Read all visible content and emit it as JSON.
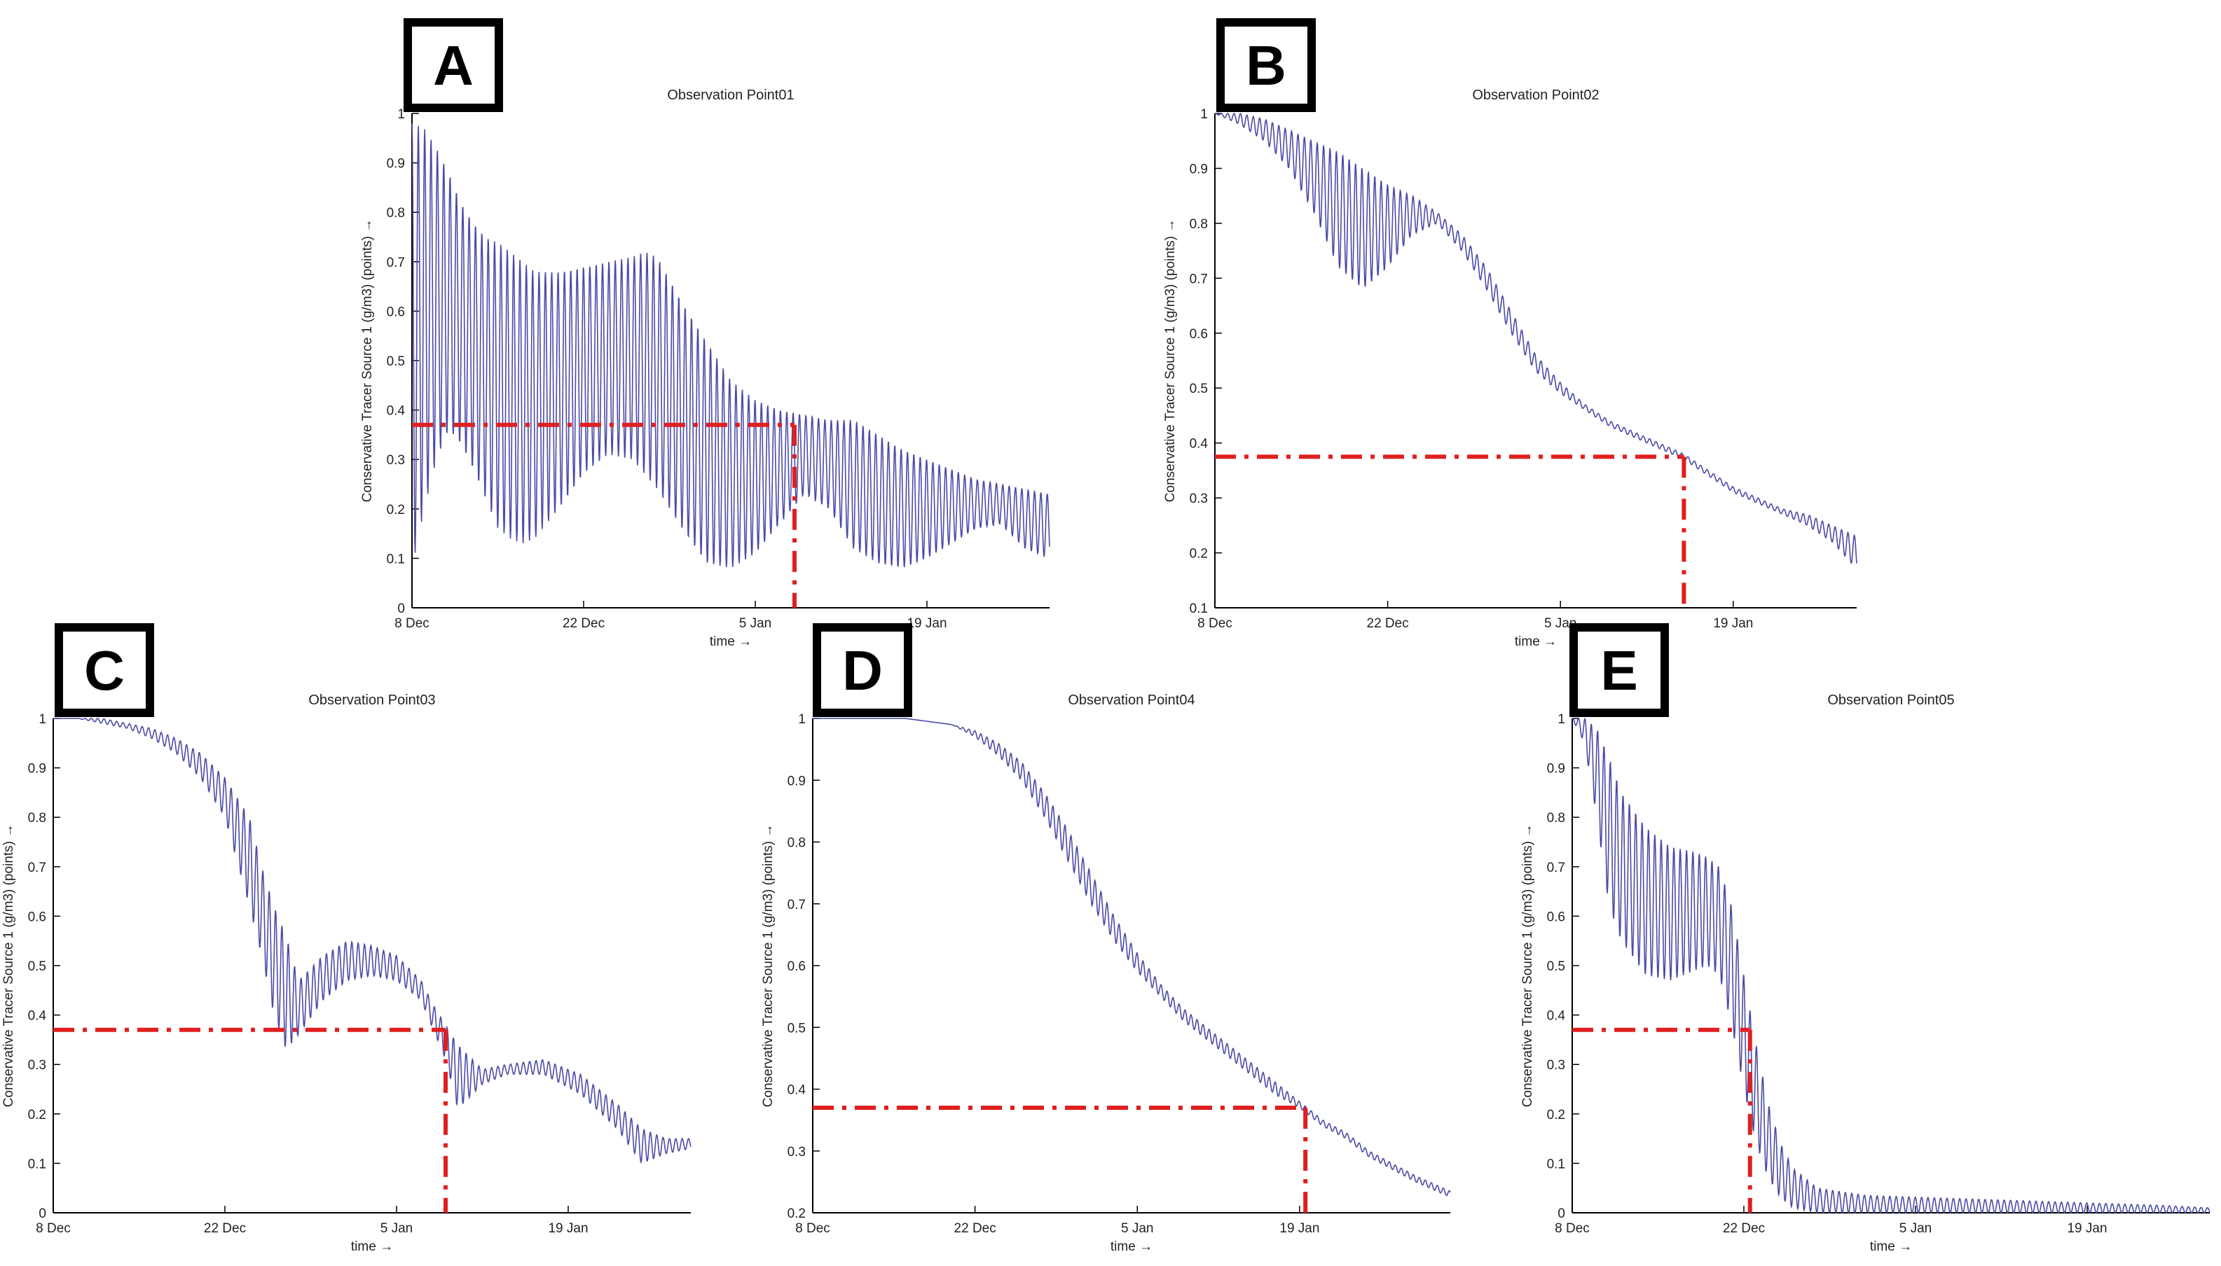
{
  "charts": [
    {
      "id": "A",
      "label": "A",
      "type": "line",
      "title": "Observation Point01",
      "xlabel": "time →",
      "ylabel": "Conservative Tracer Source 1 (g/m3) (points) →",
      "ylim": [
        0,
        1
      ],
      "yticks": [
        "0",
        "0.1",
        "0.2",
        "0.3",
        "0.4",
        "0.5",
        "0.6",
        "0.7",
        "0.8",
        "0.9",
        "1"
      ],
      "xticks": [
        {
          "label": "8 Dec",
          "day": 0
        },
        {
          "label": "22 Dec",
          "day": 14
        },
        {
          "label": "5 Jan",
          "day": 28
        },
        {
          "label": "19 Jan",
          "day": 42
        }
      ],
      "xdomain_days": [
        0,
        52
      ],
      "threshold": {
        "y": 0.37,
        "x_day": 31.2
      },
      "series_color": "#4a4aa8",
      "threshold_color": "#e01f1f",
      "chart_data": {
        "x_days": [
          0,
          1,
          2,
          3,
          4,
          5,
          6,
          7,
          8,
          9,
          10,
          12,
          14,
          16,
          18,
          19,
          20,
          22,
          24,
          26,
          28,
          30,
          32,
          34,
          36,
          38,
          40,
          42,
          44,
          46,
          48,
          50,
          52
        ],
        "upper_envelope": [
          0.98,
          0.97,
          0.93,
          0.88,
          0.82,
          0.78,
          0.75,
          0.74,
          0.72,
          0.7,
          0.68,
          0.68,
          0.69,
          0.7,
          0.71,
          0.72,
          0.71,
          0.62,
          0.54,
          0.46,
          0.42,
          0.4,
          0.39,
          0.38,
          0.38,
          0.35,
          0.32,
          0.3,
          0.28,
          0.26,
          0.25,
          0.24,
          0.23
        ],
        "lower_envelope": [
          0.08,
          0.2,
          0.3,
          0.36,
          0.33,
          0.28,
          0.22,
          0.16,
          0.14,
          0.13,
          0.14,
          0.2,
          0.27,
          0.31,
          0.3,
          0.27,
          0.24,
          0.16,
          0.09,
          0.08,
          0.11,
          0.17,
          0.23,
          0.2,
          0.12,
          0.09,
          0.08,
          0.1,
          0.13,
          0.16,
          0.17,
          0.12,
          0.1
        ],
        "periods_per_day": 1.93
      }
    },
    {
      "id": "B",
      "label": "B",
      "type": "line",
      "title": "Observation Point02",
      "xlabel": "time →",
      "ylabel": "Conservative Tracer Source 1 (g/m3) (points) →",
      "ylim": [
        0.1,
        1
      ],
      "yticks": [
        "0.1",
        "0.2",
        "0.3",
        "0.4",
        "0.5",
        "0.6",
        "0.7",
        "0.8",
        "0.9",
        "1"
      ],
      "xticks": [
        {
          "label": "8 Dec",
          "day": 0
        },
        {
          "label": "22 Dec",
          "day": 14
        },
        {
          "label": "5 Jan",
          "day": 28
        },
        {
          "label": "19 Jan",
          "day": 42
        }
      ],
      "xdomain_days": [
        0,
        52
      ],
      "threshold": {
        "y": 0.375,
        "x_day": 38.0
      },
      "series_color": "#4a4aa8",
      "threshold_color": "#e01f1f",
      "chart_data": {
        "x_days": [
          0,
          2,
          4,
          6,
          8,
          10,
          12,
          14,
          16,
          18,
          20,
          22,
          24,
          26,
          28,
          30,
          32,
          34,
          36,
          38,
          40,
          42,
          44,
          46,
          48,
          50,
          52
        ],
        "upper_envelope": [
          1.0,
          1.0,
          0.99,
          0.97,
          0.95,
          0.93,
          0.9,
          0.87,
          0.85,
          0.82,
          0.78,
          0.72,
          0.64,
          0.56,
          0.51,
          0.47,
          0.44,
          0.42,
          0.4,
          0.38,
          0.35,
          0.32,
          0.3,
          0.28,
          0.27,
          0.25,
          0.23
        ],
        "lower_envelope": [
          1.0,
          0.98,
          0.95,
          0.9,
          0.82,
          0.72,
          0.68,
          0.72,
          0.78,
          0.8,
          0.75,
          0.68,
          0.6,
          0.53,
          0.49,
          0.46,
          0.43,
          0.41,
          0.39,
          0.37,
          0.34,
          0.31,
          0.29,
          0.27,
          0.25,
          0.22,
          0.17
        ],
        "periods_per_day": 1.93
      }
    },
    {
      "id": "C",
      "label": "C",
      "type": "line",
      "title": "Observation Point03",
      "xlabel": "time →",
      "ylabel": "Conservative Tracer Source 1 (g/m3) (points) →",
      "ylim": [
        0,
        1
      ],
      "yticks": [
        "0",
        "0.1",
        "0.2",
        "0.3",
        "0.4",
        "0.5",
        "0.6",
        "0.7",
        "0.8",
        "0.9",
        "1"
      ],
      "xticks": [
        {
          "label": "8 Dec",
          "day": 0
        },
        {
          "label": "22 Dec",
          "day": 14
        },
        {
          "label": "5 Jan",
          "day": 28
        },
        {
          "label": "19 Jan",
          "day": 42
        }
      ],
      "xdomain_days": [
        0,
        52
      ],
      "threshold": {
        "y": 0.37,
        "x_day": 32.0
      },
      "series_color": "#4a4aa8",
      "threshold_color": "#e01f1f",
      "chart_data": {
        "x_days": [
          0,
          2,
          4,
          6,
          8,
          10,
          12,
          14,
          16,
          17,
          18,
          19,
          20,
          22,
          24,
          26,
          28,
          30,
          31,
          32,
          33,
          35,
          37,
          40,
          43,
          46,
          48,
          50,
          52
        ],
        "upper_envelope": [
          1.0,
          1.0,
          1.0,
          0.99,
          0.98,
          0.96,
          0.93,
          0.88,
          0.8,
          0.7,
          0.62,
          0.56,
          0.47,
          0.52,
          0.55,
          0.54,
          0.52,
          0.47,
          0.42,
          0.38,
          0.34,
          0.29,
          0.3,
          0.31,
          0.28,
          0.22,
          0.17,
          0.15,
          0.15
        ],
        "lower_envelope": [
          1.0,
          1.0,
          0.99,
          0.98,
          0.96,
          0.93,
          0.88,
          0.8,
          0.62,
          0.52,
          0.4,
          0.33,
          0.36,
          0.43,
          0.47,
          0.48,
          0.47,
          0.43,
          0.37,
          0.31,
          0.21,
          0.26,
          0.28,
          0.28,
          0.24,
          0.17,
          0.1,
          0.12,
          0.13
        ],
        "periods_per_day": 1.93
      }
    },
    {
      "id": "D",
      "label": "D",
      "type": "line",
      "title": "Observation Point04",
      "xlabel": "time →",
      "ylabel": "Conservative Tracer Source 1 (g/m3) (points) →",
      "ylim": [
        0.2,
        1
      ],
      "yticks": [
        "0.2",
        "0.3",
        "0.4",
        "0.5",
        "0.6",
        "0.7",
        "0.8",
        "0.9",
        "1"
      ],
      "xticks": [
        {
          "label": "8 Dec",
          "day": 0
        },
        {
          "label": "22 Dec",
          "day": 14
        },
        {
          "label": "5 Jan",
          "day": 28
        },
        {
          "label": "19 Jan",
          "day": 42
        }
      ],
      "xdomain_days": [
        0,
        55
      ],
      "threshold": {
        "y": 0.37,
        "x_day": 42.5
      },
      "series_color": "#4a4aa8",
      "threshold_color": "#e01f1f",
      "chart_data": {
        "x_days": [
          0,
          4,
          8,
          12,
          14,
          16,
          18,
          20,
          22,
          24,
          26,
          28,
          30,
          32,
          34,
          36,
          38,
          40,
          42,
          44,
          46,
          48,
          50,
          52,
          55
        ],
        "upper_envelope": [
          1.0,
          1.0,
          1.0,
          0.99,
          0.98,
          0.96,
          0.93,
          0.88,
          0.82,
          0.75,
          0.68,
          0.62,
          0.57,
          0.53,
          0.5,
          0.47,
          0.44,
          0.41,
          0.38,
          0.35,
          0.33,
          0.3,
          0.28,
          0.26,
          0.235
        ],
        "lower_envelope": [
          1.0,
          1.0,
          1.0,
          0.99,
          0.97,
          0.94,
          0.9,
          0.84,
          0.77,
          0.7,
          0.64,
          0.59,
          0.55,
          0.51,
          0.48,
          0.45,
          0.42,
          0.39,
          0.37,
          0.34,
          0.32,
          0.29,
          0.27,
          0.25,
          0.225
        ],
        "periods_per_day": 1.93
      }
    },
    {
      "id": "E",
      "label": "E",
      "type": "line",
      "title": "Observation Point05",
      "xlabel": "time →",
      "ylabel": "Conservative Tracer Source 1 (g/m3) (points) →",
      "ylim": [
        0,
        1
      ],
      "yticks": [
        "0",
        "0.1",
        "0.2",
        "0.3",
        "0.4",
        "0.5",
        "0.6",
        "0.7",
        "0.8",
        "0.9",
        "1"
      ],
      "xticks": [
        {
          "label": "8 Dec",
          "day": 0
        },
        {
          "label": "22 Dec",
          "day": 14
        },
        {
          "label": "5 Jan",
          "day": 28
        },
        {
          "label": "19 Jan",
          "day": 42
        }
      ],
      "xdomain_days": [
        0,
        52
      ],
      "threshold": {
        "y": 0.37,
        "x_day": 14.5
      },
      "series_color": "#4a4aa8",
      "threshold_color": "#e01f1f",
      "chart_data": {
        "x_days": [
          0,
          1,
          2,
          3,
          4,
          6,
          8,
          10,
          11,
          12,
          13,
          14,
          15,
          16,
          17,
          18,
          20,
          24,
          30,
          36,
          42,
          48,
          52
        ],
        "upper_envelope": [
          1.0,
          1.0,
          0.98,
          0.92,
          0.85,
          0.78,
          0.74,
          0.73,
          0.72,
          0.7,
          0.62,
          0.48,
          0.34,
          0.22,
          0.14,
          0.09,
          0.05,
          0.035,
          0.03,
          0.025,
          0.02,
          0.015,
          0.01
        ],
        "lower_envelope": [
          1.0,
          0.95,
          0.8,
          0.62,
          0.55,
          0.48,
          0.47,
          0.49,
          0.5,
          0.48,
          0.38,
          0.25,
          0.14,
          0.07,
          0.03,
          0.01,
          0.0,
          0.0,
          0.0,
          0.0,
          0.0,
          0.0,
          0.0
        ],
        "periods_per_day": 1.93
      }
    }
  ]
}
